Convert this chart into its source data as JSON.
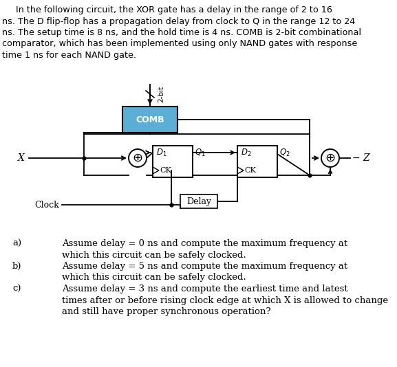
{
  "bg": "#ffffff",
  "comb_fill": "#5bafd6",
  "comb_text": "#ffffff",
  "title_lines": [
    "     In the following circuit, the XOR gate has a delay in the range of 2 to 16",
    "ns. The D flip-flop has a propagation delay from clock to Q in the range 12 to 24",
    "ns. The setup time is 8 ns, and the hold time is 4 ns. COMB is 2-bit combinational",
    "comparator, which has been implemented using only NAND gates with response",
    "time 1 ns for each NAND gate."
  ],
  "q_lines": [
    [
      "a)",
      "Assume delay = 0 ns and compute the maximum frequency at"
    ],
    [
      "",
      "which this circuit can be safely clocked."
    ],
    [
      "b)",
      "Assume delay = 5 ns and compute the maximum frequency at"
    ],
    [
      "",
      "which this circuit can be safely clocked."
    ],
    [
      "c)",
      "Assume delay = 3 ns and compute the earliest time and latest"
    ],
    [
      "",
      "times after or before rising clock edge at which X is allowed to change"
    ],
    [
      "",
      "and still have proper synchronous operation?"
    ]
  ],
  "lw": 1.3
}
